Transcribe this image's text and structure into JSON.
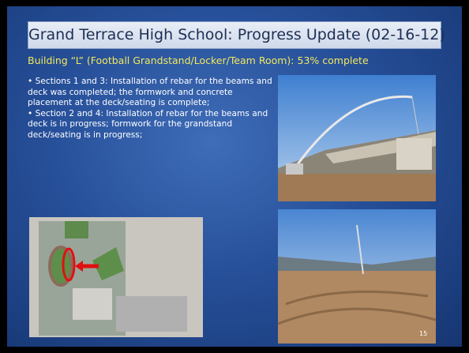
{
  "slide": {
    "title": "Grand Terrace High School: Progress Update (02-16-12)",
    "subtitle": "Building “L” (Football Grandstand/Locker/Team Room):  53% complete",
    "bullets": [
      "Sections 1 and 3: Installation of rebar for the beams and deck was completed; the formwork and concrete placement at the deck/seating is complete;",
      "Section 2 and 4:  Installation of rebar for the beams and deck is in progress; formwork for the grandstand deck/seating is in progress;"
    ],
    "page_number": "15"
  }
}
